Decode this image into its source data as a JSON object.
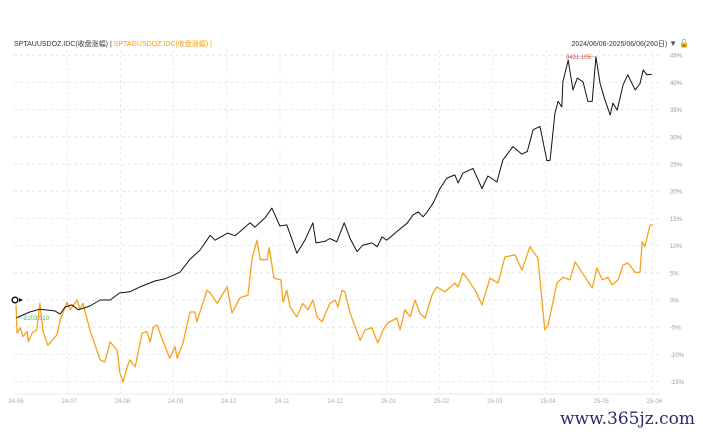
{
  "header": {
    "series1_label": "SPTAUUSDOZ.IDC(收盘涨幅)",
    "separator": "|",
    "series2_label": "SPTAGUSDOZ.IDC(收盘涨幅)",
    "date_range": "2024/06/06-2025/06/06(260日)"
  },
  "watermark": "www.365jz.com",
  "colors": {
    "series1": "#111111",
    "series2": "#f7a21b",
    "max_label": "#e74c3c",
    "min_label": "#4caf50"
  },
  "chart_data": {
    "type": "line",
    "xlabel": "",
    "ylabel": "",
    "x_unit": "months since 2024-06",
    "xticks": [
      "24-06",
      "24-07",
      "24-08",
      "24-09",
      "24-10",
      "24-11",
      "24-12",
      "25-01",
      "25-02",
      "25-03",
      "25-04",
      "25-05",
      "25-06"
    ],
    "yticks": [
      "45%",
      "40%",
      "35%",
      "30%",
      "25%",
      "20%",
      "15%",
      "10%",
      "5%",
      "0%",
      "-5%",
      "-10%",
      "-15%"
    ],
    "ylim": [
      -16,
      46
    ],
    "grid": true,
    "max_annotation": "3431.105",
    "min_annotation": "2203.510",
    "series": [
      {
        "name": "SPTAUUSDOZ.IDC(收盘涨幅)",
        "points": [
          [
            0,
            -3.3
          ],
          [
            0.26,
            -2.2
          ],
          [
            0.45,
            -1.7
          ],
          [
            0.73,
            -2.0
          ],
          [
            0.83,
            -2.6
          ],
          [
            0.92,
            -1.3
          ],
          [
            1.05,
            -0.9
          ],
          [
            1.17,
            -1.8
          ],
          [
            1.39,
            -1.1
          ],
          [
            1.58,
            0
          ],
          [
            1.77,
            0
          ],
          [
            1.95,
            1.3
          ],
          [
            2.14,
            1.5
          ],
          [
            2.33,
            2.4
          ],
          [
            2.61,
            3.5
          ],
          [
            2.8,
            3.9
          ],
          [
            3.08,
            5.1
          ],
          [
            3.27,
            7.5
          ],
          [
            3.46,
            9.2
          ],
          [
            3.65,
            11.9
          ],
          [
            3.74,
            11.0
          ],
          [
            3.98,
            12.3
          ],
          [
            4.12,
            11.8
          ],
          [
            4.4,
            14.2
          ],
          [
            4.49,
            13.4
          ],
          [
            4.68,
            15.1
          ],
          [
            4.81,
            16.9
          ],
          [
            4.96,
            13.6
          ],
          [
            5.09,
            13.8
          ],
          [
            5.28,
            8.6
          ],
          [
            5.43,
            11.0
          ],
          [
            5.58,
            14.2
          ],
          [
            5.64,
            10.5
          ],
          [
            5.81,
            10.8
          ],
          [
            5.9,
            11.3
          ],
          [
            6.03,
            10.7
          ],
          [
            6.17,
            14.2
          ],
          [
            6.28,
            11.3
          ],
          [
            6.41,
            8.9
          ],
          [
            6.52,
            10.1
          ],
          [
            6.69,
            10.5
          ],
          [
            6.79,
            9.8
          ],
          [
            6.88,
            11.6
          ],
          [
            6.97,
            11.0
          ],
          [
            7.16,
            12.6
          ],
          [
            7.35,
            14.1
          ],
          [
            7.46,
            15.6
          ],
          [
            7.56,
            16.2
          ],
          [
            7.65,
            15.3
          ],
          [
            7.73,
            16.2
          ],
          [
            7.84,
            17.8
          ],
          [
            7.97,
            20.5
          ],
          [
            8.1,
            22.4
          ],
          [
            8.25,
            23.0
          ],
          [
            8.31,
            21.5
          ],
          [
            8.4,
            23.3
          ],
          [
            8.59,
            24.2
          ],
          [
            8.76,
            20.5
          ],
          [
            8.87,
            22.8
          ],
          [
            9.04,
            21.7
          ],
          [
            9.15,
            25.7
          ],
          [
            9.34,
            28.2
          ],
          [
            9.51,
            26.8
          ],
          [
            9.61,
            27.3
          ],
          [
            9.72,
            31.3
          ],
          [
            9.85,
            31.9
          ],
          [
            9.98,
            25.6
          ],
          [
            10.04,
            25.7
          ],
          [
            10.13,
            34.3
          ],
          [
            10.19,
            36.5
          ],
          [
            10.26,
            35.5
          ],
          [
            10.28,
            40.1
          ],
          [
            10.38,
            44.1
          ],
          [
            10.47,
            38.6
          ],
          [
            10.55,
            40.8
          ],
          [
            10.66,
            40.1
          ],
          [
            10.75,
            36.5
          ],
          [
            10.83,
            36.5
          ],
          [
            10.9,
            44.7
          ],
          [
            10.98,
            39.8
          ],
          [
            11.07,
            36.8
          ],
          [
            11.17,
            34.0
          ],
          [
            11.22,
            36.2
          ],
          [
            11.3,
            34.9
          ],
          [
            11.41,
            39.5
          ],
          [
            11.5,
            41.4
          ],
          [
            11.64,
            38.6
          ],
          [
            11.73,
            39.8
          ],
          [
            11.79,
            42.3
          ],
          [
            11.86,
            41.4
          ],
          [
            11.95,
            41.5
          ]
        ]
      },
      {
        "name": "SPTAGUSDOZ.IDC(收盘涨幅)",
        "points": [
          [
            0,
            -0.9
          ],
          [
            0.02,
            -6.1
          ],
          [
            0.08,
            -5.1
          ],
          [
            0.13,
            -6.7
          ],
          [
            0.21,
            -5.8
          ],
          [
            0.23,
            -7.7
          ],
          [
            0.3,
            -6.1
          ],
          [
            0.39,
            -5.5
          ],
          [
            0.45,
            -0.6
          ],
          [
            0.51,
            -5.8
          ],
          [
            0.6,
            -8.3
          ],
          [
            0.77,
            -6.4
          ],
          [
            0.83,
            -3.7
          ],
          [
            0.96,
            -0.4
          ],
          [
            1.02,
            -1.8
          ],
          [
            1.15,
            0
          ],
          [
            1.2,
            -1.8
          ],
          [
            1.26,
            -0.6
          ],
          [
            1.39,
            -5.5
          ],
          [
            1.58,
            -11.0
          ],
          [
            1.67,
            -11.4
          ],
          [
            1.77,
            -7.7
          ],
          [
            1.9,
            -9.2
          ],
          [
            1.95,
            -13.2
          ],
          [
            2.01,
            -15.1
          ],
          [
            2.09,
            -12.3
          ],
          [
            2.14,
            -11.0
          ],
          [
            2.24,
            -12.3
          ],
          [
            2.37,
            -6.1
          ],
          [
            2.46,
            -5.8
          ],
          [
            2.52,
            -7.7
          ],
          [
            2.58,
            -5.0
          ],
          [
            2.65,
            -4.6
          ],
          [
            2.74,
            -7.0
          ],
          [
            2.89,
            -10.7
          ],
          [
            2.99,
            -8.6
          ],
          [
            3.03,
            -10.7
          ],
          [
            3.14,
            -7.9
          ],
          [
            3.27,
            -2.2
          ],
          [
            3.36,
            -2.2
          ],
          [
            3.4,
            -4.0
          ],
          [
            3.5,
            -0.9
          ],
          [
            3.59,
            1.8
          ],
          [
            3.65,
            1.3
          ],
          [
            3.78,
            -0.6
          ],
          [
            3.97,
            2.4
          ],
          [
            4.06,
            -2.4
          ],
          [
            4.21,
            0.4
          ],
          [
            4.36,
            0.9
          ],
          [
            4.44,
            7.7
          ],
          [
            4.53,
            11.0
          ],
          [
            4.59,
            7.4
          ],
          [
            4.72,
            7.4
          ],
          [
            4.76,
            9.6
          ],
          [
            4.85,
            4.0
          ],
          [
            4.98,
            3.7
          ],
          [
            5.02,
            -0.4
          ],
          [
            5.09,
            1.8
          ],
          [
            5.15,
            -1.3
          ],
          [
            5.28,
            -3.1
          ],
          [
            5.39,
            -0.6
          ],
          [
            5.49,
            -1.8
          ],
          [
            5.58,
            0
          ],
          [
            5.66,
            -3.1
          ],
          [
            5.75,
            -4.0
          ],
          [
            5.9,
            -0.6
          ],
          [
            6.0,
            0
          ],
          [
            6.05,
            -1.3
          ],
          [
            6.13,
            1.8
          ],
          [
            6.18,
            1.5
          ],
          [
            6.28,
            -2.4
          ],
          [
            6.47,
            -7.4
          ],
          [
            6.56,
            -5.5
          ],
          [
            6.69,
            -5.1
          ],
          [
            6.8,
            -7.9
          ],
          [
            6.9,
            -5.5
          ],
          [
            6.99,
            -4.2
          ],
          [
            7.16,
            -3.3
          ],
          [
            7.22,
            -5.5
          ],
          [
            7.31,
            -1.8
          ],
          [
            7.41,
            -3.1
          ],
          [
            7.5,
            0
          ],
          [
            7.59,
            -2.4
          ],
          [
            7.69,
            -3.3
          ],
          [
            7.82,
            0.9
          ],
          [
            7.91,
            2.4
          ],
          [
            8.06,
            1.5
          ],
          [
            8.25,
            3.1
          ],
          [
            8.31,
            2.4
          ],
          [
            8.4,
            5.0
          ],
          [
            8.5,
            3.7
          ],
          [
            8.63,
            1.8
          ],
          [
            8.76,
            -0.9
          ],
          [
            8.91,
            4.0
          ],
          [
            9.06,
            3.1
          ],
          [
            9.19,
            7.9
          ],
          [
            9.38,
            8.3
          ],
          [
            9.51,
            5.5
          ],
          [
            9.66,
            9.8
          ],
          [
            9.81,
            7.7
          ],
          [
            9.94,
            -5.5
          ],
          [
            10.0,
            -4.6
          ],
          [
            10.17,
            3.1
          ],
          [
            10.28,
            4.2
          ],
          [
            10.41,
            3.7
          ],
          [
            10.51,
            7.0
          ],
          [
            10.64,
            5.1
          ],
          [
            10.83,
            2.2
          ],
          [
            10.92,
            5.9
          ],
          [
            11.02,
            3.7
          ],
          [
            11.13,
            4.2
          ],
          [
            11.2,
            2.8
          ],
          [
            11.32,
            3.7
          ],
          [
            11.41,
            6.4
          ],
          [
            11.5,
            6.8
          ],
          [
            11.64,
            5.1
          ],
          [
            11.73,
            5.1
          ],
          [
            11.77,
            10.7
          ],
          [
            11.82,
            9.8
          ],
          [
            11.92,
            13.8
          ],
          [
            11.97,
            13.8
          ]
        ]
      }
    ]
  }
}
